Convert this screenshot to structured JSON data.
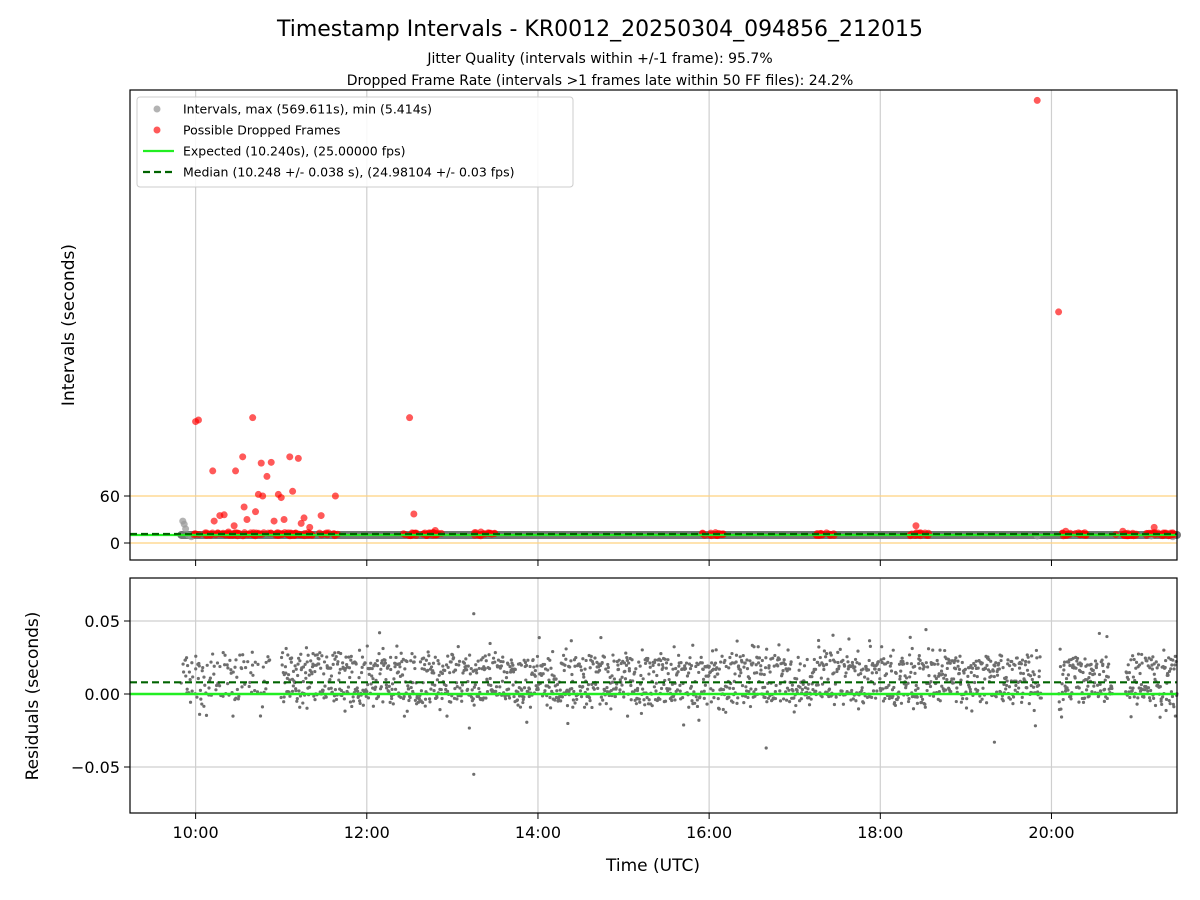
{
  "title": "Timestamp Intervals - KR0012_20250304_094856_212015",
  "subtitle_1": "Jitter Quality (intervals within +/-1 frame): 95.7%",
  "subtitle_2": "Dropped Frame Rate (intervals >1 frames late within 50 FF files): 24.2%",
  "chart_data": [
    {
      "type": "scatter",
      "panel": "top",
      "ylabel": "Intervals (seconds)",
      "xlabel": "",
      "xlim": [
        "09:14",
        "21:28"
      ],
      "y_ticks": [
        0,
        60
      ],
      "grid": "x",
      "legend_placement": "upper-left",
      "threshold_lines": [
        0,
        60
      ],
      "threshold_color": "#ffd27f",
      "series": [
        {
          "name": "Intervals, max (569.611s), min (5.414s)",
          "color": "#999999",
          "band_x": [
            "09:50",
            "21:28"
          ],
          "band_y": 10.24,
          "points": [
            [
              "09:51",
              28
            ],
            [
              "09:52",
              24
            ],
            [
              "09:53",
              18
            ],
            [
              "09:55",
              10
            ],
            [
              "09:57",
              8
            ],
            [
              "19:50",
              9
            ],
            [
              "21:10",
              9
            ],
            [
              "21:25",
              8
            ]
          ]
        },
        {
          "name": "Possible Dropped Frames",
          "color": "#ff0000",
          "clusters": [
            [
              "09:58",
              "11:40"
            ],
            [
              "12:25",
              "12:55"
            ],
            [
              "13:15",
              "13:30"
            ],
            [
              "15:55",
              "16:10"
            ],
            [
              "17:15",
              "17:30"
            ],
            [
              "18:20",
              "18:35"
            ],
            [
              "20:05",
              "20:25"
            ],
            [
              "20:45",
              "21:00"
            ],
            [
              "21:05",
              "21:28"
            ]
          ],
          "points": [
            [
              "10:00",
              155
            ],
            [
              "10:02",
              157
            ],
            [
              "10:12",
              92
            ],
            [
              "10:13",
              28
            ],
            [
              "10:17",
              35
            ],
            [
              "10:20",
              36
            ],
            [
              "10:23",
              14
            ],
            [
              "10:27",
              22
            ],
            [
              "10:28",
              92
            ],
            [
              "10:33",
              110
            ],
            [
              "10:34",
              46
            ],
            [
              "10:36",
              30
            ],
            [
              "10:40",
              160
            ],
            [
              "10:42",
              40
            ],
            [
              "10:44",
              62
            ],
            [
              "10:46",
              102
            ],
            [
              "10:47",
              60
            ],
            [
              "10:50",
              85
            ],
            [
              "10:53",
              103
            ],
            [
              "10:55",
              28
            ],
            [
              "10:58",
              62
            ],
            [
              "11:00",
              58
            ],
            [
              "11:02",
              30
            ],
            [
              "11:06",
              110
            ],
            [
              "11:08",
              66
            ],
            [
              "11:12",
              108
            ],
            [
              "11:14",
              25
            ],
            [
              "11:16",
              32
            ],
            [
              "11:20",
              20
            ],
            [
              "11:28",
              35
            ],
            [
              "11:38",
              60
            ],
            [
              "12:30",
              160
            ],
            [
              "12:33",
              37
            ],
            [
              "12:48",
              16
            ],
            [
              "13:20",
              14
            ],
            [
              "18:25",
              22
            ],
            [
              "20:10",
              15
            ],
            [
              "20:22",
              12
            ],
            [
              "20:50",
              15
            ],
            [
              "21:12",
              20
            ],
            [
              "21:25",
              13
            ],
            [
              "19:50",
              565
            ],
            [
              "20:05",
              295
            ]
          ]
        },
        {
          "name": "Expected (10.240s), (25.00000 fps)",
          "color": "#22ee22",
          "y": 10.24
        },
        {
          "name": "Median (10.248 +/- 0.038 s), (24.98104 +/- 0.03 fps)",
          "color": "#006400",
          "y": 10.248
        }
      ]
    },
    {
      "type": "scatter",
      "panel": "bottom",
      "ylabel": "Residuals (seconds)",
      "xlabel": "Time (UTC)",
      "xlim": [
        "09:14",
        "21:28"
      ],
      "ylim": [
        -0.08,
        0.08
      ],
      "y_ticks": [
        -0.05,
        0.0,
        0.05
      ],
      "y_tick_labels": [
        "−0.05",
        "0.00",
        "0.05"
      ],
      "x_tick_labels": [
        "10:00",
        "12:00",
        "14:00",
        "16:00",
        "18:00",
        "20:00"
      ],
      "grid": "both",
      "expected_residual": 0.0,
      "median_residual": 0.008,
      "residual_spread": 0.02,
      "gaps": [
        [
          "10:52",
          "11:00"
        ],
        [
          "19:53",
          "20:05"
        ],
        [
          "20:43",
          "20:52"
        ]
      ],
      "outliers": [
        [
          "13:15",
          0.055
        ],
        [
          "13:15",
          -0.055
        ],
        [
          "16:40",
          -0.037
        ],
        [
          "19:20",
          -0.033
        ]
      ]
    }
  ]
}
